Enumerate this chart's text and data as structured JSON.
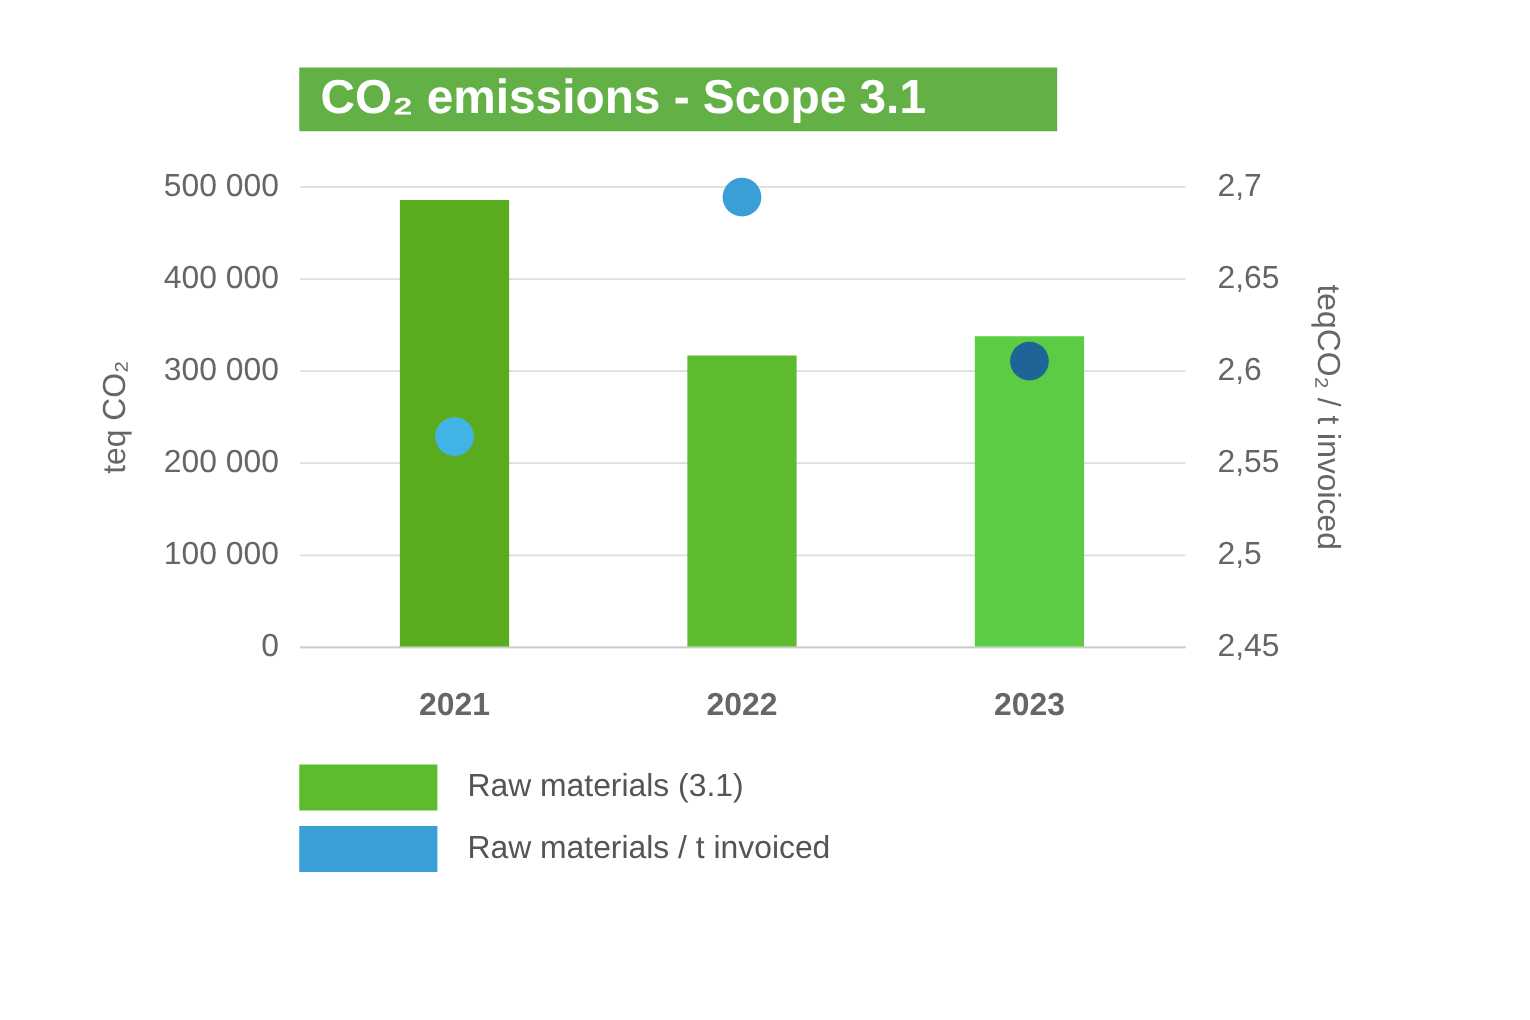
{
  "chart_data": {
    "type": "bar",
    "title": "CO₂ emissions - Scope 3.1",
    "ylabel": "teq CO₂",
    "y2label": "teqCO₂ / t invoiced",
    "categories": [
      "2021",
      "2022",
      "2023"
    ],
    "series": [
      {
        "name": "Raw materials (3.1)",
        "color": "#5dbb2e",
        "colors": [
          "#5aab1e",
          "#5dbb2e",
          "#5ccc45"
        ],
        "values": [
          485000,
          316000,
          337000
        ]
      },
      {
        "name": "Raw materials / t invoiced",
        "type": "scatter",
        "axis": "y2",
        "color": "#3a9fd6",
        "colors": [
          "#41b4e6",
          "#3a9fd6",
          "#1e6496"
        ],
        "values": [
          2.564,
          2.694,
          2.605
        ]
      }
    ],
    "ylim": [
      0,
      500000
    ],
    "yticks": [
      {
        "value": 0,
        "label": "0"
      },
      {
        "value": 100000,
        "label": "100 000"
      },
      {
        "value": 200000,
        "label": "200 000"
      },
      {
        "value": 300000,
        "label": "300 000"
      },
      {
        "value": 400000,
        "label": "400 000"
      },
      {
        "value": 500000,
        "label": "500 000"
      }
    ],
    "y2lim": [
      2.45,
      2.7
    ],
    "y2ticks": [
      {
        "value": 2.45,
        "label": "2,45"
      },
      {
        "value": 2.5,
        "label": "2,5"
      },
      {
        "value": 2.55,
        "label": "2,55"
      },
      {
        "value": 2.6,
        "label": "2,6"
      },
      {
        "value": 2.65,
        "label": "2,65"
      },
      {
        "value": 2.7,
        "label": "2,7"
      }
    ],
    "grid": "y",
    "legend": "bottom",
    "marker": "circle"
  }
}
